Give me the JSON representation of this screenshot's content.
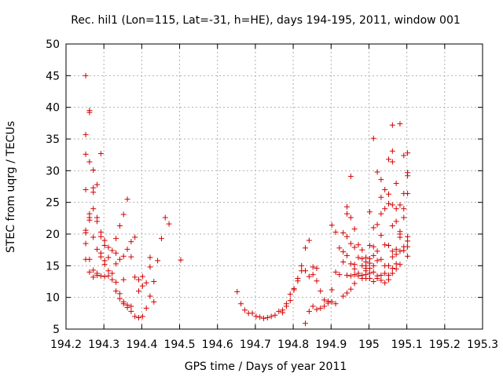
{
  "chart_data": {
    "type": "scatter",
    "title": "Rec. hil1 (Lon=115, Lat=-31, h=HE), days 194-195, 2011, window 001",
    "xlabel": "GPS time / Days of year 2011",
    "ylabel": "STEC from uqrg / TECUs",
    "xlim": [
      194.2,
      195.3
    ],
    "ylim": [
      5,
      50
    ],
    "xticks": [
      "194.2",
      "194.3",
      "194.4",
      "194.5",
      "194.6",
      "194.7",
      "194.8",
      "194.9",
      "195",
      "195.1",
      "195.2",
      "195.3"
    ],
    "yticks": [
      "5",
      "10",
      "15",
      "20",
      "25",
      "30",
      "35",
      "40",
      "45",
      "50"
    ],
    "grid": true,
    "marker": "+",
    "color": "#d40000",
    "series": [
      {
        "points": [
          [
            194.252,
            45.0
          ],
          [
            194.252,
            35.7
          ],
          [
            194.252,
            32.6
          ],
          [
            194.252,
            27.0
          ],
          [
            194.252,
            20.6
          ],
          [
            194.252,
            20.2
          ],
          [
            194.252,
            18.5
          ],
          [
            194.252,
            16.0
          ],
          [
            194.262,
            39.5
          ],
          [
            194.262,
            39.2
          ],
          [
            194.262,
            31.4
          ],
          [
            194.262,
            23.2
          ],
          [
            194.262,
            22.6
          ],
          [
            194.262,
            22.2
          ],
          [
            194.262,
            16.0
          ],
          [
            194.262,
            14.0
          ],
          [
            194.272,
            30.1
          ],
          [
            194.272,
            27.3
          ],
          [
            194.272,
            26.6
          ],
          [
            194.272,
            24.0
          ],
          [
            194.272,
            19.5
          ],
          [
            194.272,
            14.3
          ],
          [
            194.272,
            13.2
          ],
          [
            194.282,
            27.8
          ],
          [
            194.282,
            22.6
          ],
          [
            194.282,
            22.0
          ],
          [
            194.282,
            17.6
          ],
          [
            194.282,
            13.8
          ],
          [
            194.282,
            13.5
          ],
          [
            194.292,
            32.7
          ],
          [
            194.292,
            20.3
          ],
          [
            194.292,
            19.6
          ],
          [
            194.292,
            17.0
          ],
          [
            194.292,
            16.4
          ],
          [
            194.292,
            13.4
          ],
          [
            194.302,
            19.0
          ],
          [
            194.302,
            18.2
          ],
          [
            194.302,
            15.8
          ],
          [
            194.302,
            15.2
          ],
          [
            194.302,
            13.3
          ],
          [
            194.312,
            17.9
          ],
          [
            194.312,
            16.3
          ],
          [
            194.312,
            14.2
          ],
          [
            194.312,
            13.4
          ],
          [
            194.322,
            17.4
          ],
          [
            194.322,
            13.8
          ],
          [
            194.322,
            12.8
          ],
          [
            194.332,
            19.3
          ],
          [
            194.332,
            17.0
          ],
          [
            194.332,
            15.3
          ],
          [
            194.332,
            12.4
          ],
          [
            194.332,
            11.0
          ],
          [
            194.342,
            21.3
          ],
          [
            194.342,
            16.0
          ],
          [
            194.342,
            10.6
          ],
          [
            194.342,
            9.8
          ],
          [
            194.352,
            23.1
          ],
          [
            194.352,
            16.5
          ],
          [
            194.352,
            12.8
          ],
          [
            194.352,
            9.3
          ],
          [
            194.352,
            9.0
          ],
          [
            194.362,
            25.5
          ],
          [
            194.362,
            17.6
          ],
          [
            194.362,
            8.8
          ],
          [
            194.362,
            8.4
          ],
          [
            194.372,
            18.8
          ],
          [
            194.372,
            16.4
          ],
          [
            194.372,
            8.6
          ],
          [
            194.372,
            7.8
          ],
          [
            194.382,
            19.5
          ],
          [
            194.382,
            13.2
          ],
          [
            194.382,
            7.0
          ],
          [
            194.392,
            12.8
          ],
          [
            194.392,
            11.0
          ],
          [
            194.392,
            6.8
          ],
          [
            194.402,
            13.3
          ],
          [
            194.402,
            11.8
          ],
          [
            194.402,
            7.0
          ],
          [
            194.412,
            12.3
          ],
          [
            194.412,
            8.3
          ],
          [
            194.422,
            16.3
          ],
          [
            194.422,
            14.8
          ],
          [
            194.422,
            10.2
          ],
          [
            194.432,
            12.5
          ],
          [
            194.432,
            9.3
          ],
          [
            194.442,
            15.8
          ],
          [
            194.452,
            19.3
          ],
          [
            194.462,
            22.6
          ],
          [
            194.472,
            21.6
          ],
          [
            194.503,
            15.9
          ],
          [
            194.652,
            10.9
          ],
          [
            194.662,
            9.0
          ],
          [
            194.672,
            8.0
          ],
          [
            194.682,
            7.5
          ],
          [
            194.692,
            7.5
          ],
          [
            194.702,
            7.0
          ],
          [
            194.712,
            6.9
          ],
          [
            194.722,
            6.7
          ],
          [
            194.732,
            6.8
          ],
          [
            194.742,
            7.0
          ],
          [
            194.752,
            7.2
          ],
          [
            194.762,
            7.8
          ],
          [
            194.772,
            8.0
          ],
          [
            194.772,
            7.6
          ],
          [
            194.782,
            9.0
          ],
          [
            194.782,
            8.6
          ],
          [
            194.792,
            10.5
          ],
          [
            194.792,
            9.5
          ],
          [
            194.802,
            11.4
          ],
          [
            194.802,
            11.2
          ],
          [
            194.812,
            13.0
          ],
          [
            194.812,
            12.6
          ],
          [
            194.822,
            15.0
          ],
          [
            194.822,
            14.2
          ],
          [
            194.832,
            17.8
          ],
          [
            194.832,
            14.2
          ],
          [
            194.832,
            5.9
          ],
          [
            194.842,
            19.0
          ],
          [
            194.842,
            13.3
          ],
          [
            194.842,
            7.8
          ],
          [
            194.852,
            14.8
          ],
          [
            194.852,
            13.6
          ],
          [
            194.852,
            8.6
          ],
          [
            194.862,
            14.6
          ],
          [
            194.862,
            12.6
          ],
          [
            194.862,
            8.1
          ],
          [
            194.872,
            11.0
          ],
          [
            194.872,
            8.3
          ],
          [
            194.882,
            9.6
          ],
          [
            194.882,
            8.6
          ],
          [
            194.892,
            9.4
          ],
          [
            194.892,
            9.1
          ],
          [
            194.902,
            21.4
          ],
          [
            194.902,
            11.2
          ],
          [
            194.902,
            9.3
          ],
          [
            194.912,
            20.3
          ],
          [
            194.912,
            14.0
          ],
          [
            194.912,
            9.0
          ],
          [
            194.922,
            17.8
          ],
          [
            194.922,
            13.6
          ],
          [
            194.932,
            20.2
          ],
          [
            194.932,
            17.2
          ],
          [
            194.932,
            15.6
          ],
          [
            194.932,
            10.2
          ],
          [
            194.942,
            24.3
          ],
          [
            194.942,
            23.2
          ],
          [
            194.942,
            19.6
          ],
          [
            194.942,
            16.6
          ],
          [
            194.942,
            13.5
          ],
          [
            194.942,
            10.7
          ],
          [
            194.952,
            29.1
          ],
          [
            194.952,
            22.6
          ],
          [
            194.952,
            18.5
          ],
          [
            194.952,
            15.3
          ],
          [
            194.952,
            13.4
          ],
          [
            194.952,
            11.3
          ],
          [
            194.962,
            20.8
          ],
          [
            194.962,
            17.9
          ],
          [
            194.962,
            15.2
          ],
          [
            194.962,
            14.5
          ],
          [
            194.962,
            13.6
          ],
          [
            194.962,
            12.2
          ],
          [
            194.972,
            18.3
          ],
          [
            194.972,
            16.3
          ],
          [
            194.972,
            13.8
          ],
          [
            194.972,
            13.4
          ],
          [
            194.982,
            17.5
          ],
          [
            194.982,
            16.1
          ],
          [
            194.982,
            15.0
          ],
          [
            194.982,
            13.5
          ],
          [
            194.982,
            13.0
          ],
          [
            194.992,
            16.3
          ],
          [
            194.992,
            15.6
          ],
          [
            194.992,
            15.0
          ],
          [
            194.992,
            14.6
          ],
          [
            194.992,
            14.2
          ],
          [
            194.992,
            13.6
          ],
          [
            194.992,
            13.0
          ],
          [
            195.002,
            23.5
          ],
          [
            195.002,
            18.2
          ],
          [
            195.002,
            16.1
          ],
          [
            195.002,
            15.4
          ],
          [
            195.002,
            14.6
          ],
          [
            195.002,
            13.8
          ],
          [
            195.002,
            13.0
          ],
          [
            195.012,
            35.1
          ],
          [
            195.012,
            21.0
          ],
          [
            195.012,
            18.0
          ],
          [
            195.012,
            16.6
          ],
          [
            195.012,
            15.0
          ],
          [
            195.012,
            14.0
          ],
          [
            195.012,
            12.5
          ],
          [
            195.022,
            29.8
          ],
          [
            195.022,
            21.5
          ],
          [
            195.022,
            17.3
          ],
          [
            195.022,
            15.8
          ],
          [
            195.022,
            13.4
          ],
          [
            195.022,
            13.0
          ],
          [
            195.032,
            28.6
          ],
          [
            195.032,
            25.8
          ],
          [
            195.032,
            23.2
          ],
          [
            195.032,
            19.8
          ],
          [
            195.032,
            16.0
          ],
          [
            195.032,
            13.5
          ],
          [
            195.032,
            12.7
          ],
          [
            195.042,
            27.0
          ],
          [
            195.042,
            24.0
          ],
          [
            195.042,
            18.3
          ],
          [
            195.042,
            15.0
          ],
          [
            195.042,
            13.8
          ],
          [
            195.042,
            12.3
          ],
          [
            195.052,
            31.8
          ],
          [
            195.052,
            26.3
          ],
          [
            195.052,
            24.8
          ],
          [
            195.052,
            18.2
          ],
          [
            195.052,
            15.0
          ],
          [
            195.052,
            13.5
          ],
          [
            195.052,
            12.8
          ],
          [
            195.062,
            37.2
          ],
          [
            195.062,
            33.1
          ],
          [
            195.062,
            31.4
          ],
          [
            195.062,
            24.6
          ],
          [
            195.062,
            21.3
          ],
          [
            195.062,
            17.3
          ],
          [
            195.062,
            16.4
          ],
          [
            195.062,
            14.6
          ],
          [
            195.062,
            13.8
          ],
          [
            195.072,
            28.0
          ],
          [
            195.072,
            24.0
          ],
          [
            195.072,
            22.0
          ],
          [
            195.072,
            17.6
          ],
          [
            195.072,
            16.8
          ],
          [
            195.072,
            15.3
          ],
          [
            195.072,
            14.5
          ],
          [
            195.082,
            37.4
          ],
          [
            195.082,
            24.6
          ],
          [
            195.082,
            20.4
          ],
          [
            195.082,
            20.0
          ],
          [
            195.082,
            19.5
          ],
          [
            195.082,
            17.3
          ],
          [
            195.082,
            15.2
          ],
          [
            195.092,
            32.4
          ],
          [
            195.092,
            26.4
          ],
          [
            195.092,
            24.0
          ],
          [
            195.092,
            22.6
          ],
          [
            195.092,
            18.0
          ],
          [
            195.092,
            17.4
          ],
          [
            195.102,
            32.8
          ],
          [
            195.102,
            29.7
          ],
          [
            195.102,
            29.2
          ],
          [
            195.102,
            26.4
          ],
          [
            195.102,
            19.6
          ],
          [
            195.102,
            18.9
          ],
          [
            195.102,
            18.0
          ],
          [
            195.102,
            16.5
          ]
        ]
      }
    ]
  }
}
